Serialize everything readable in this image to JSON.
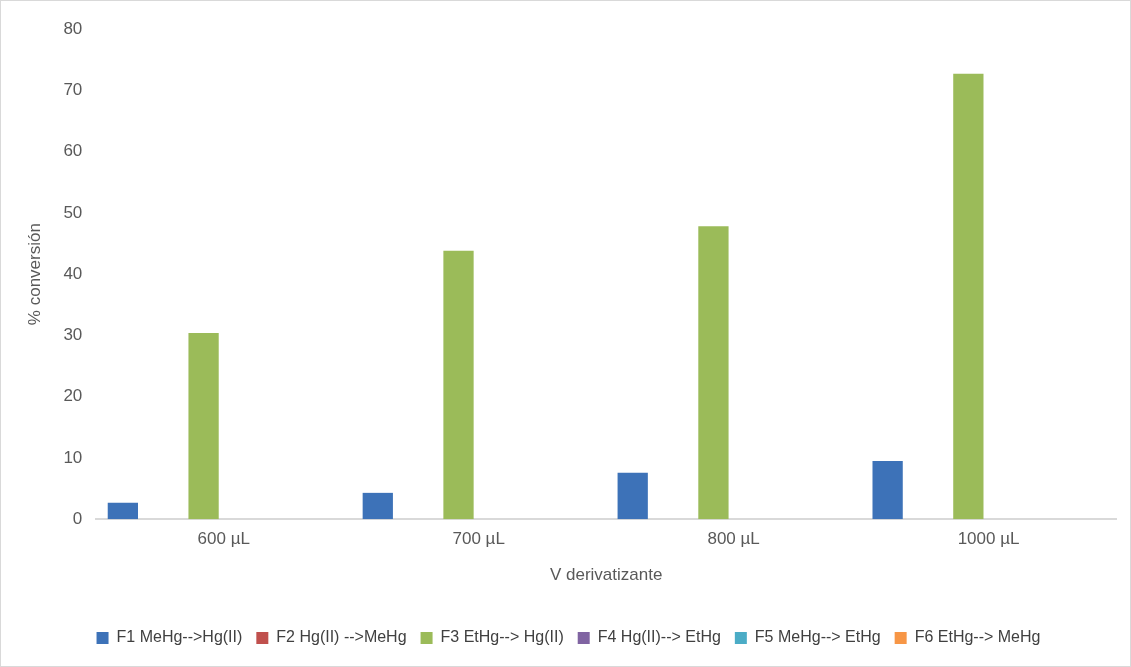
{
  "chart_data": {
    "type": "bar",
    "xlabel": "V derivatizante",
    "ylabel": "% conversión",
    "categories": [
      "600 µL",
      "700 µL",
      "800 µL",
      "1000 µL"
    ],
    "series": [
      {
        "name": "F1 MeHg-->Hg(II)",
        "color": "#3d72b8",
        "values": [
          2.7,
          4.3,
          7.6,
          9.5
        ]
      },
      {
        "name": "F2 Hg(II) -->MeHg",
        "color": "#c0504d",
        "values": [
          0,
          0,
          0,
          0
        ]
      },
      {
        "name": "F3 EtHg--> Hg(II)",
        "color": "#9bbb59",
        "values": [
          30.4,
          43.8,
          47.8,
          72.7
        ]
      },
      {
        "name": "F4 Hg(II)--> EtHg",
        "color": "#8064a2",
        "values": [
          0,
          0,
          0,
          0
        ]
      },
      {
        "name": "F5 MeHg--> EtHg",
        "color": "#4bacc6",
        "values": [
          0,
          0,
          0,
          0
        ]
      },
      {
        "name": "F6 EtHg--> MeHg",
        "color": "#f79646",
        "values": [
          0,
          0,
          0,
          0
        ]
      }
    ],
    "ylim": [
      0,
      80
    ],
    "yticks": [
      0,
      10,
      20,
      30,
      40,
      50,
      60,
      70,
      80
    ],
    "grid": false,
    "legend": "bottom"
  }
}
